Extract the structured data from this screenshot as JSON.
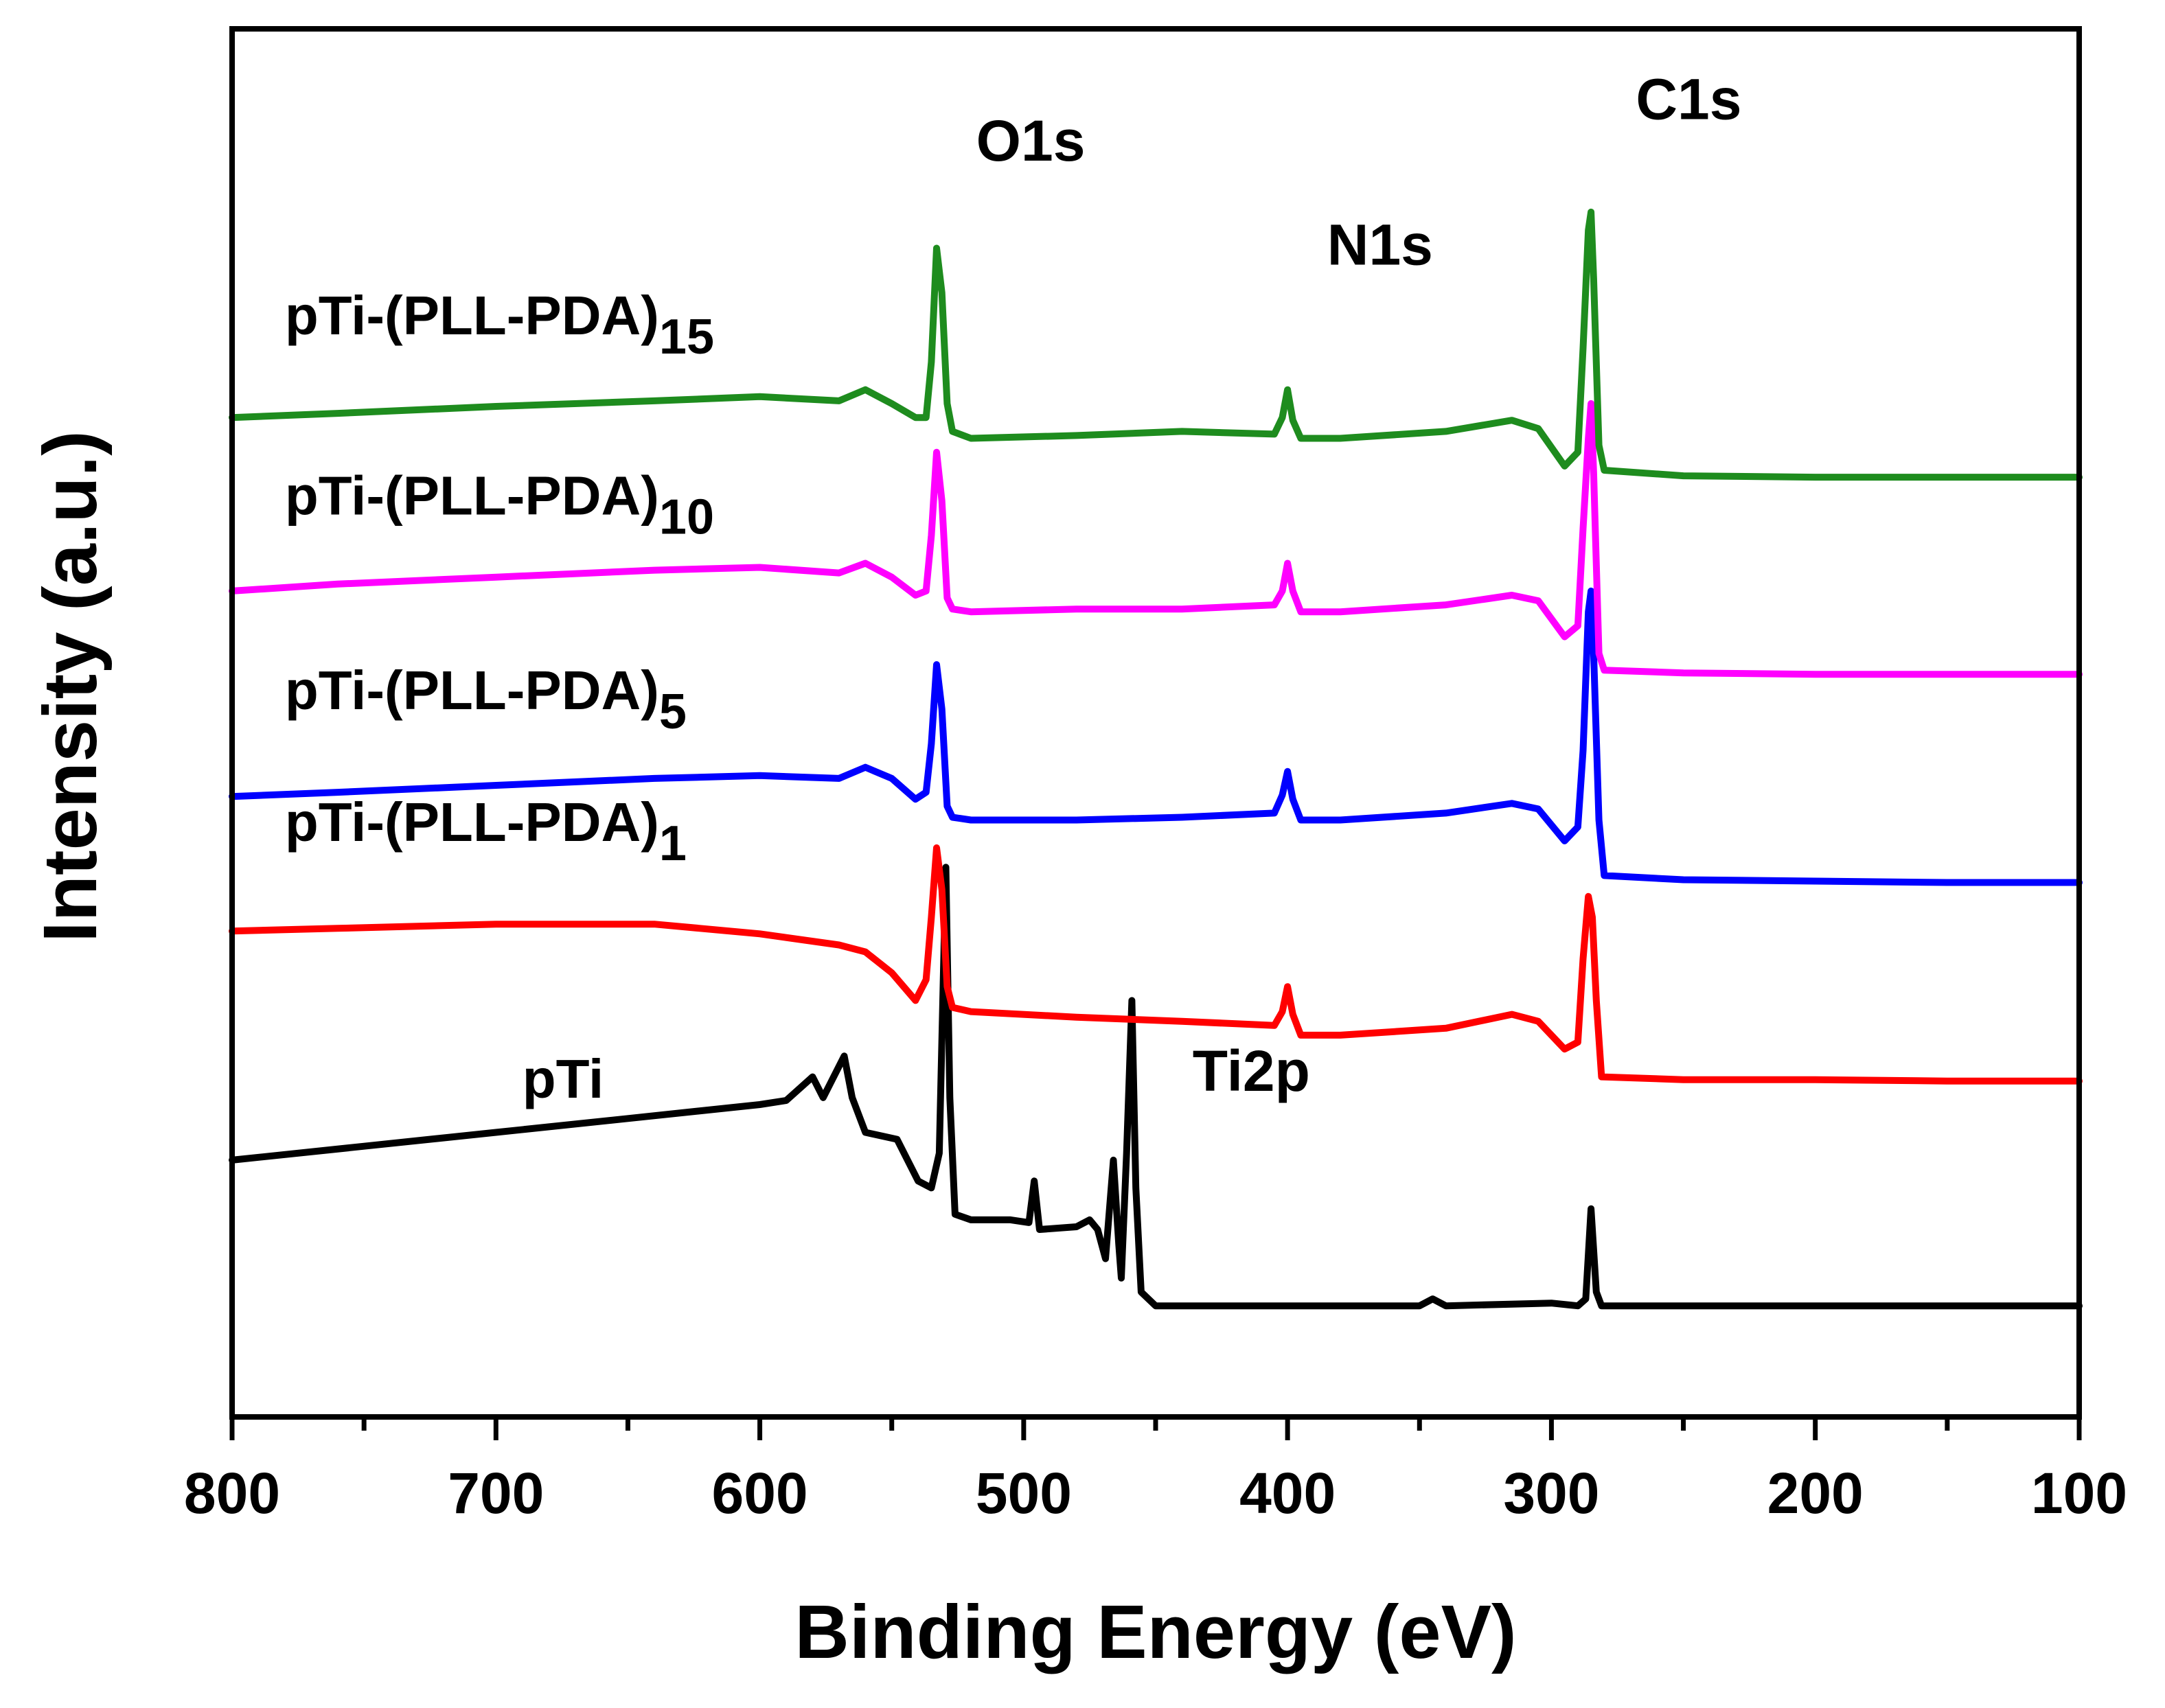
{
  "chart_data": {
    "type": "line",
    "title": "",
    "xlabel": "Binding Energy (eV)",
    "ylabel": "Intensity (a.u.)",
    "xlim": [
      800,
      100
    ],
    "ylim": [
      0,
      10
    ],
    "x_ticks": [
      "800",
      "700",
      "600",
      "500",
      "400",
      "300",
      "200",
      "100"
    ],
    "x_tick_values": [
      800,
      700,
      600,
      500,
      400,
      300,
      200,
      100
    ],
    "grid": false,
    "legend": "inline labels above each trace",
    "annotations": [
      {
        "text": "O1s",
        "x": 518,
        "y": 9.05
      },
      {
        "text": "N1s",
        "x": 385,
        "y": 8.3
      },
      {
        "text": "C1s",
        "x": 268,
        "y": 9.35
      },
      {
        "text": "Ti2p",
        "x": 436,
        "y": 2.35
      }
    ],
    "series": [
      {
        "name": "pTi",
        "label_main": "pTi",
        "label_sub": "",
        "color": "#000000",
        "label_x": 690,
        "label_y": 2.3,
        "points": [
          [
            800,
            1.85
          ],
          [
            750,
            1.95
          ],
          [
            700,
            2.05
          ],
          [
            650,
            2.15
          ],
          [
            600,
            2.25
          ],
          [
            590,
            2.28
          ],
          [
            580,
            2.45
          ],
          [
            576,
            2.3
          ],
          [
            568,
            2.6
          ],
          [
            565,
            2.3
          ],
          [
            560,
            2.05
          ],
          [
            548,
            2.0
          ],
          [
            540,
            1.7
          ],
          [
            535,
            1.65
          ],
          [
            532,
            1.9
          ],
          [
            529.5,
            3.96
          ],
          [
            528,
            2.3
          ],
          [
            526,
            1.46
          ],
          [
            520,
            1.42
          ],
          [
            505,
            1.42
          ],
          [
            498,
            1.4
          ],
          [
            496,
            1.7
          ],
          [
            494,
            1.35
          ],
          [
            480,
            1.37
          ],
          [
            475,
            1.42
          ],
          [
            472,
            1.35
          ],
          [
            469,
            1.14
          ],
          [
            466,
            1.85
          ],
          [
            464,
            1.25
          ],
          [
            463,
            1.0
          ],
          [
            461,
            1.9
          ],
          [
            459,
            3.0
          ],
          [
            457.5,
            1.65
          ],
          [
            455.5,
            0.9
          ],
          [
            450,
            0.8
          ],
          [
            350,
            0.8
          ],
          [
            345,
            0.85
          ],
          [
            340,
            0.8
          ],
          [
            300,
            0.82
          ],
          [
            290,
            0.8
          ],
          [
            287,
            0.85
          ],
          [
            285,
            1.5
          ],
          [
            283,
            0.9
          ],
          [
            281,
            0.8
          ],
          [
            100,
            0.8
          ]
        ]
      },
      {
        "name": "pTi-(PLL-PDA)1",
        "label_main": "pTi-(PLL-PDA)",
        "label_sub": "1",
        "color": "#ff0000",
        "label_x": 780,
        "label_y": 4.15,
        "points": [
          [
            800,
            3.5
          ],
          [
            760,
            3.52
          ],
          [
            700,
            3.55
          ],
          [
            640,
            3.55
          ],
          [
            600,
            3.48
          ],
          [
            570,
            3.4
          ],
          [
            560,
            3.35
          ],
          [
            550,
            3.2
          ],
          [
            541,
            3.0
          ],
          [
            537,
            3.15
          ],
          [
            535,
            3.6
          ],
          [
            533,
            4.1
          ],
          [
            531,
            3.8
          ],
          [
            529,
            3.1
          ],
          [
            527,
            2.95
          ],
          [
            520,
            2.92
          ],
          [
            480,
            2.88
          ],
          [
            440,
            2.85
          ],
          [
            405,
            2.82
          ],
          [
            402,
            2.92
          ],
          [
            400,
            3.1
          ],
          [
            398,
            2.9
          ],
          [
            395,
            2.75
          ],
          [
            380,
            2.75
          ],
          [
            340,
            2.8
          ],
          [
            315,
            2.9
          ],
          [
            305,
            2.85
          ],
          [
            295,
            2.65
          ],
          [
            290,
            2.7
          ],
          [
            288,
            3.3
          ],
          [
            286,
            3.75
          ],
          [
            284.5,
            3.6
          ],
          [
            283,
            3.0
          ],
          [
            281,
            2.45
          ],
          [
            250,
            2.43
          ],
          [
            200,
            2.43
          ],
          [
            150,
            2.42
          ],
          [
            100,
            2.42
          ]
        ]
      },
      {
        "name": "pTi-(PLL-PDA)5",
        "label_main": "pTi-(PLL-PDA)",
        "label_sub": "5",
        "color": "#0000ff",
        "label_x": 780,
        "label_y": 5.1,
        "points": [
          [
            800,
            4.47
          ],
          [
            760,
            4.5
          ],
          [
            700,
            4.55
          ],
          [
            640,
            4.6
          ],
          [
            600,
            4.62
          ],
          [
            570,
            4.6
          ],
          [
            560,
            4.68
          ],
          [
            550,
            4.6
          ],
          [
            541,
            4.45
          ],
          [
            537,
            4.5
          ],
          [
            535,
            4.85
          ],
          [
            533,
            5.42
          ],
          [
            531,
            5.1
          ],
          [
            529,
            4.4
          ],
          [
            527,
            4.32
          ],
          [
            520,
            4.3
          ],
          [
            480,
            4.3
          ],
          [
            440,
            4.32
          ],
          [
            405,
            4.35
          ],
          [
            402,
            4.48
          ],
          [
            400,
            4.65
          ],
          [
            398,
            4.45
          ],
          [
            395,
            4.3
          ],
          [
            380,
            4.3
          ],
          [
            340,
            4.35
          ],
          [
            315,
            4.42
          ],
          [
            305,
            4.38
          ],
          [
            295,
            4.15
          ],
          [
            290,
            4.25
          ],
          [
            288,
            4.8
          ],
          [
            286,
            5.8
          ],
          [
            285,
            5.95
          ],
          [
            284,
            5.5
          ],
          [
            282,
            4.3
          ],
          [
            280,
            3.9
          ],
          [
            250,
            3.87
          ],
          [
            200,
            3.86
          ],
          [
            150,
            3.85
          ],
          [
            100,
            3.85
          ]
        ]
      },
      {
        "name": "pTi-(PLL-PDA)10",
        "label_main": "pTi-(PLL-PDA)",
        "label_sub": "10",
        "color": "#ff00ff",
        "label_x": 780,
        "label_y": 6.5,
        "points": [
          [
            800,
            5.95
          ],
          [
            760,
            6.0
          ],
          [
            700,
            6.05
          ],
          [
            640,
            6.1
          ],
          [
            600,
            6.12
          ],
          [
            570,
            6.08
          ],
          [
            560,
            6.15
          ],
          [
            550,
            6.05
          ],
          [
            541,
            5.92
          ],
          [
            537,
            5.95
          ],
          [
            535,
            6.35
          ],
          [
            533,
            6.95
          ],
          [
            531,
            6.6
          ],
          [
            529,
            5.9
          ],
          [
            527,
            5.82
          ],
          [
            520,
            5.8
          ],
          [
            480,
            5.82
          ],
          [
            440,
            5.82
          ],
          [
            405,
            5.85
          ],
          [
            402,
            5.95
          ],
          [
            400,
            6.15
          ],
          [
            398,
            5.95
          ],
          [
            395,
            5.8
          ],
          [
            380,
            5.8
          ],
          [
            340,
            5.85
          ],
          [
            315,
            5.92
          ],
          [
            305,
            5.88
          ],
          [
            295,
            5.62
          ],
          [
            290,
            5.7
          ],
          [
            288,
            6.4
          ],
          [
            286,
            7.05
          ],
          [
            285,
            7.3
          ],
          [
            284,
            6.8
          ],
          [
            282,
            5.5
          ],
          [
            280,
            5.38
          ],
          [
            250,
            5.36
          ],
          [
            200,
            5.35
          ],
          [
            150,
            5.35
          ],
          [
            100,
            5.35
          ]
        ]
      },
      {
        "name": "pTi-(PLL-PDA)15",
        "label_main": "pTi-(PLL-PDA)",
        "label_sub": "15",
        "color": "#1e8c1e",
        "label_x": 780,
        "label_y": 7.8,
        "points": [
          [
            800,
            7.2
          ],
          [
            760,
            7.23
          ],
          [
            700,
            7.28
          ],
          [
            640,
            7.32
          ],
          [
            600,
            7.35
          ],
          [
            570,
            7.32
          ],
          [
            560,
            7.4
          ],
          [
            550,
            7.3
          ],
          [
            541,
            7.2
          ],
          [
            537,
            7.2
          ],
          [
            535,
            7.6
          ],
          [
            533,
            8.42
          ],
          [
            531,
            8.1
          ],
          [
            529,
            7.3
          ],
          [
            527,
            7.1
          ],
          [
            520,
            7.05
          ],
          [
            480,
            7.07
          ],
          [
            440,
            7.1
          ],
          [
            405,
            7.08
          ],
          [
            402,
            7.2
          ],
          [
            400,
            7.4
          ],
          [
            398,
            7.18
          ],
          [
            395,
            7.05
          ],
          [
            380,
            7.05
          ],
          [
            340,
            7.1
          ],
          [
            315,
            7.18
          ],
          [
            305,
            7.12
          ],
          [
            295,
            6.85
          ],
          [
            290,
            6.95
          ],
          [
            288,
            7.7
          ],
          [
            286,
            8.55
          ],
          [
            285,
            8.68
          ],
          [
            284,
            8.2
          ],
          [
            282,
            7.0
          ],
          [
            280,
            6.82
          ],
          [
            250,
            6.78
          ],
          [
            200,
            6.77
          ],
          [
            150,
            6.77
          ],
          [
            100,
            6.77
          ]
        ]
      }
    ]
  }
}
